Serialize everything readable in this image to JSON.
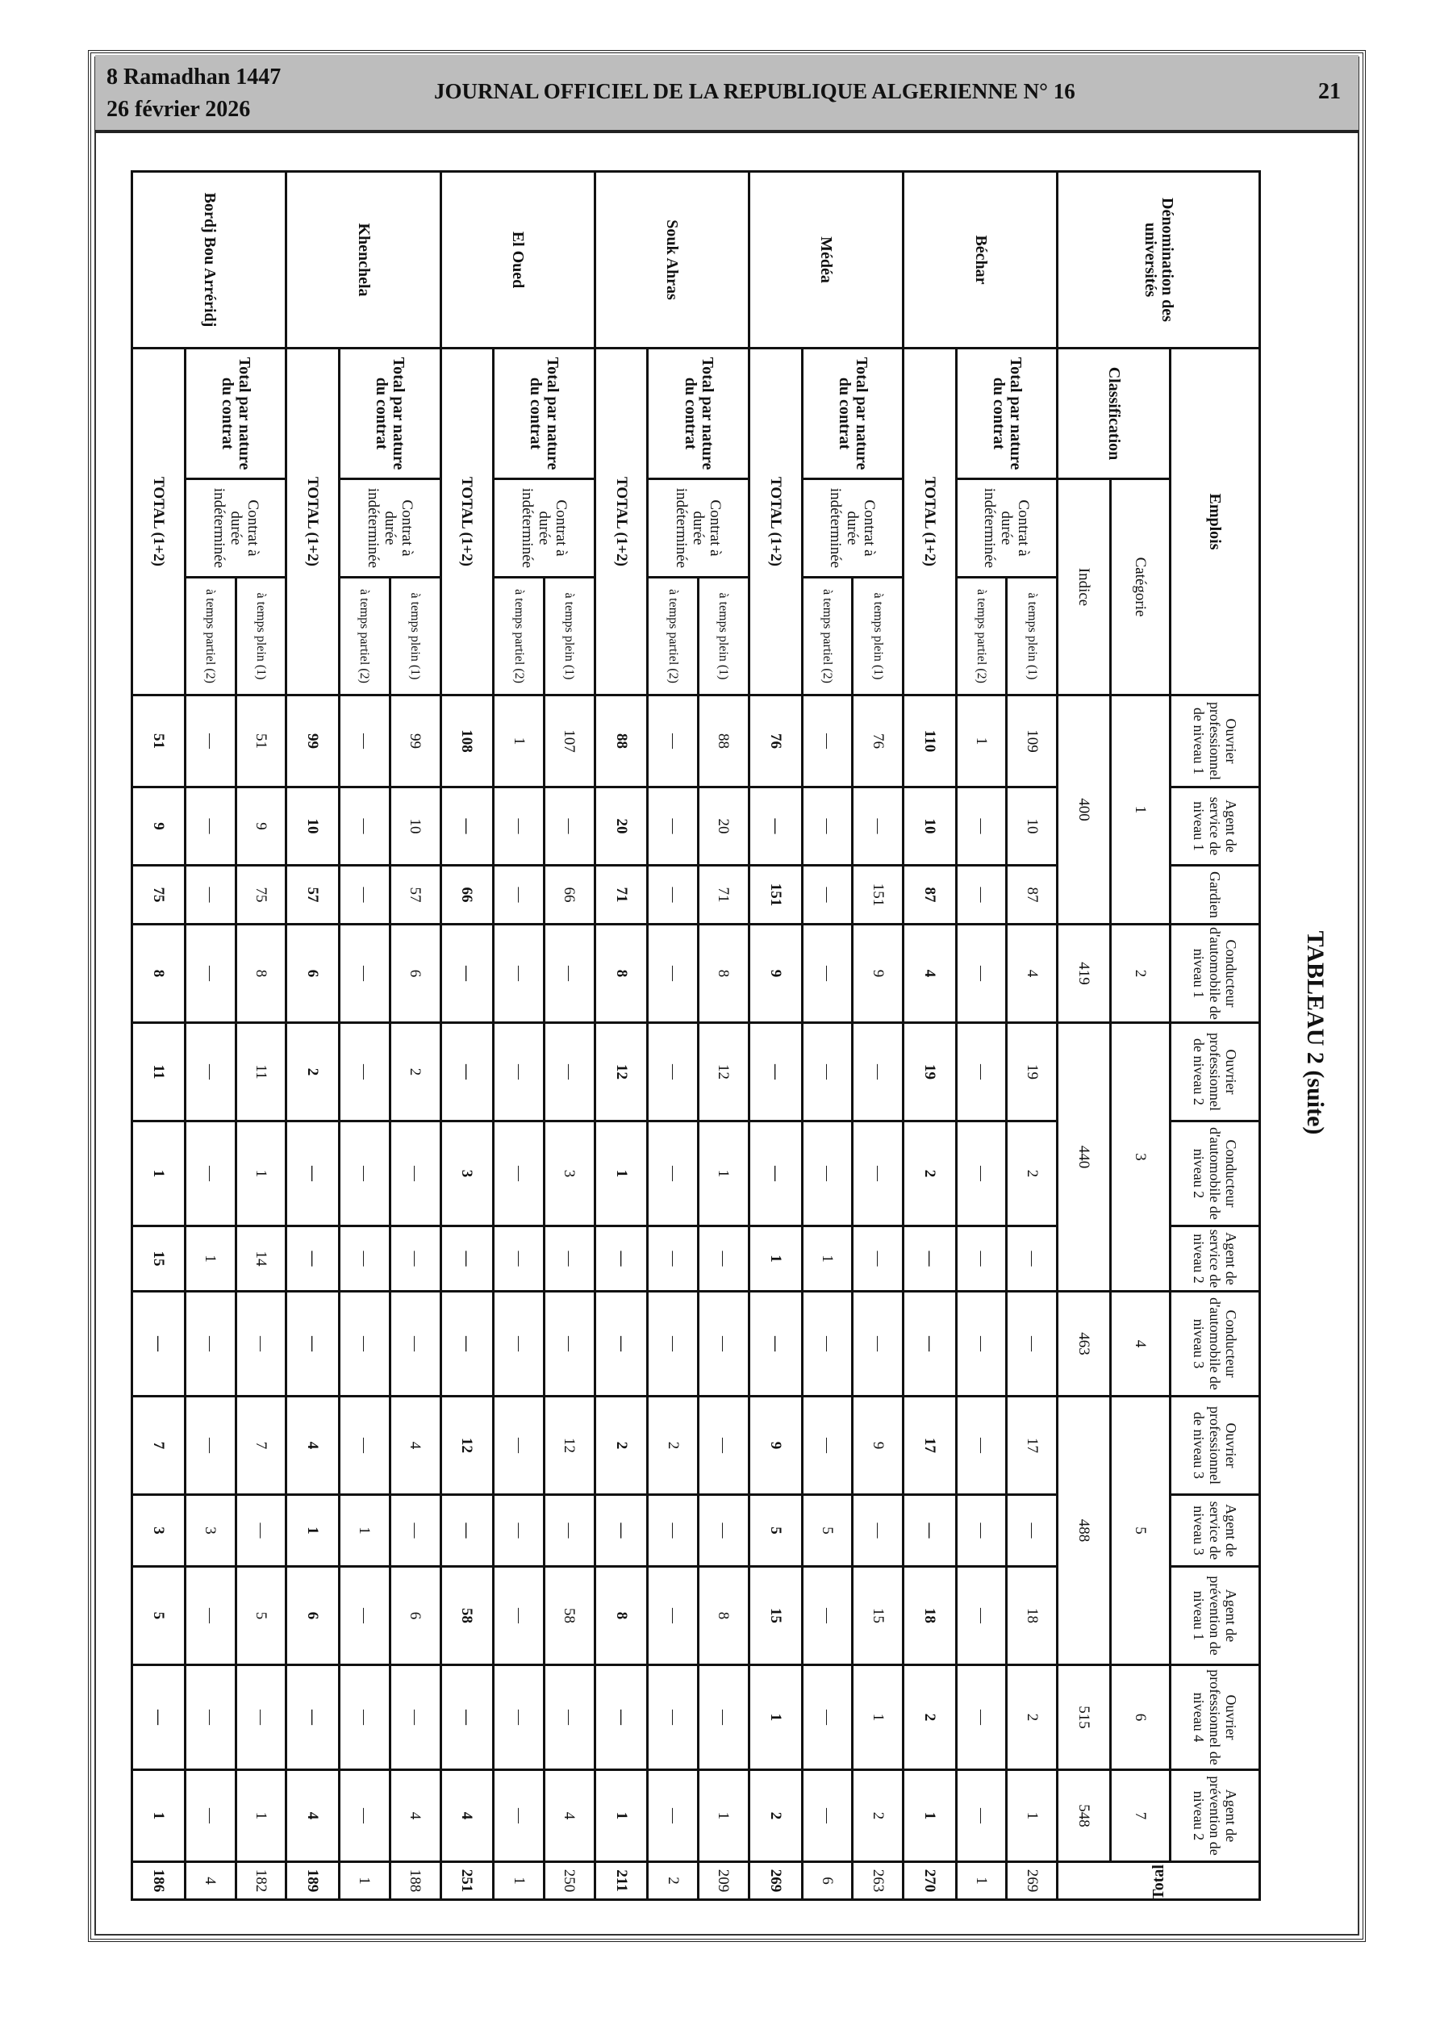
{
  "header": {
    "hijri_date": "8 Ramadhan 1447",
    "date": "26 février 2026",
    "journal": "JOURNAL OFFICIEL DE LA REPUBLIQUE ALGERIENNE N° 16",
    "page": "21"
  },
  "title": "TABLEAU 2 (suite)",
  "labels": {
    "denomination": "Dénomination des universités",
    "emplois": "Emplois",
    "classification": "Classification",
    "categorie": "Catégorie",
    "indice": "Indice",
    "total": "Total",
    "total_nature": "Total par nature du contrat",
    "contrat": "Contrat à durée indéterminée",
    "plein": "à temps plein (1)",
    "partiel": "à temps partiel (2)",
    "total_row": "TOTAL (1+2)"
  },
  "columns": [
    {
      "name": "Ouvrier professionnel de niveau 1",
      "categorie": "1",
      "indice": "400"
    },
    {
      "name": "Agent de service de niveau 1",
      "categorie": "1",
      "indice": "400"
    },
    {
      "name": "Gardien",
      "categorie": "1",
      "indice": "400"
    },
    {
      "name": "Conducteur d'automobile de niveau 1",
      "categorie": "2",
      "indice": "419"
    },
    {
      "name": "Ouvrier professionnel de niveau 2",
      "categorie": "3",
      "indice": "440"
    },
    {
      "name": "Conducteur d'automobile de niveau 2",
      "categorie": "3",
      "indice": "440"
    },
    {
      "name": "Agent de service de niveau 2",
      "categorie": "3",
      "indice": "440"
    },
    {
      "name": "Conducteur d'automobile de niveau 3",
      "categorie": "4",
      "indice": "463"
    },
    {
      "name": "Ouvrier professionnel de niveau 3",
      "categorie": "5",
      "indice": "488"
    },
    {
      "name": "Agent de service de niveau 3",
      "categorie": "5",
      "indice": "488"
    },
    {
      "name": "Agent de prévention de niveau 1",
      "categorie": "5",
      "indice": "488"
    },
    {
      "name": "Ouvrier professionnel de niveau 4",
      "categorie": "6",
      "indice": "515"
    },
    {
      "name": "Agent de prévention de niveau 2",
      "categorie": "7",
      "indice": "548"
    }
  ],
  "universities": [
    {
      "name": "Béchar",
      "plein": [
        "109",
        "10",
        "87",
        "4",
        "19",
        "2",
        "—",
        "—",
        "17",
        "—",
        "18",
        "2",
        "1",
        "269"
      ],
      "partiel": [
        "1",
        "—",
        "—",
        "—",
        "—",
        "—",
        "—",
        "—",
        "—",
        "—",
        "—",
        "—",
        "—",
        "1"
      ],
      "total": [
        "110",
        "10",
        "87",
        "4",
        "19",
        "2",
        "—",
        "—",
        "17",
        "—",
        "18",
        "2",
        "1",
        "270"
      ]
    },
    {
      "name": "Médéa",
      "plein": [
        "76",
        "—",
        "151",
        "9",
        "—",
        "—",
        "—",
        "—",
        "9",
        "—",
        "15",
        "1",
        "2",
        "263"
      ],
      "partiel": [
        "—",
        "—",
        "—",
        "—",
        "—",
        "—",
        "1",
        "—",
        "—",
        "5",
        "—",
        "—",
        "—",
        "6"
      ],
      "total": [
        "76",
        "—",
        "151",
        "9",
        "—",
        "—",
        "1",
        "—",
        "9",
        "5",
        "15",
        "1",
        "2",
        "269"
      ]
    },
    {
      "name": "Souk Ahras",
      "plein": [
        "88",
        "20",
        "71",
        "8",
        "12",
        "1",
        "—",
        "—",
        "—",
        "—",
        "8",
        "—",
        "1",
        "209"
      ],
      "partiel": [
        "—",
        "—",
        "—",
        "—",
        "—",
        "—",
        "—",
        "—",
        "2",
        "—",
        "—",
        "—",
        "—",
        "2"
      ],
      "total": [
        "88",
        "20",
        "71",
        "8",
        "12",
        "1",
        "—",
        "—",
        "2",
        "—",
        "8",
        "—",
        "1",
        "211"
      ]
    },
    {
      "name": "El Oued",
      "plein": [
        "107",
        "—",
        "66",
        "—",
        "—",
        "3",
        "—",
        "—",
        "12",
        "—",
        "58",
        "—",
        "4",
        "250"
      ],
      "partiel": [
        "1",
        "—",
        "—",
        "—",
        "—",
        "—",
        "—",
        "—",
        "—",
        "—",
        "—",
        "—",
        "—",
        "1"
      ],
      "total": [
        "108",
        "—",
        "66",
        "—",
        "—",
        "3",
        "—",
        "—",
        "12",
        "—",
        "58",
        "—",
        "4",
        "251"
      ]
    },
    {
      "name": "Khenchela",
      "plein": [
        "99",
        "10",
        "57",
        "6",
        "2",
        "—",
        "—",
        "—",
        "4",
        "—",
        "6",
        "—",
        "4",
        "188"
      ],
      "partiel": [
        "—",
        "—",
        "—",
        "—",
        "—",
        "—",
        "—",
        "—",
        "—",
        "1",
        "—",
        "—",
        "—",
        "1"
      ],
      "total": [
        "99",
        "10",
        "57",
        "6",
        "2",
        "—",
        "—",
        "—",
        "4",
        "1",
        "6",
        "—",
        "4",
        "189"
      ]
    },
    {
      "name": "Bordj Bou Arréridj",
      "plein": [
        "51",
        "9",
        "75",
        "8",
        "11",
        "1",
        "14",
        "—",
        "7",
        "—",
        "5",
        "—",
        "1",
        "182"
      ],
      "partiel": [
        "—",
        "—",
        "—",
        "—",
        "—",
        "—",
        "1",
        "—",
        "—",
        "3",
        "—",
        "—",
        "—",
        "4"
      ],
      "total": [
        "51",
        "9",
        "75",
        "8",
        "11",
        "1",
        "15",
        "—",
        "7",
        "3",
        "5",
        "—",
        "1",
        "186"
      ]
    }
  ]
}
